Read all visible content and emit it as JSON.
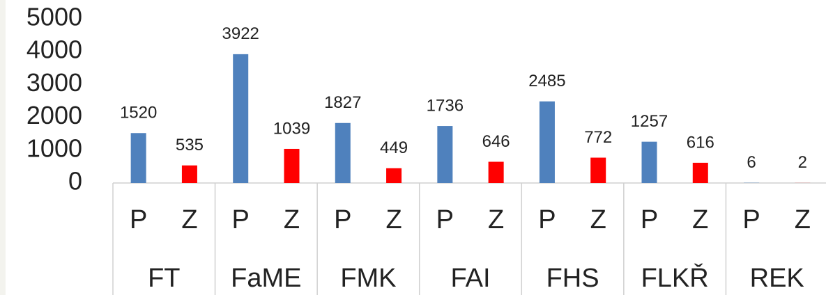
{
  "chart_data": {
    "type": "bar",
    "groups": [
      "FT",
      "FaME",
      "FMK",
      "FAI",
      "FHS",
      "FLKŘ",
      "REK"
    ],
    "categories": [
      "P",
      "Z",
      "P",
      "Z",
      "P",
      "Z",
      "P",
      "Z",
      "P",
      "Z",
      "P",
      "Z",
      "P",
      "Z"
    ],
    "values": [
      1520,
      535,
      3922,
      1039,
      1827,
      449,
      1736,
      646,
      2485,
      772,
      1257,
      616,
      6,
      2
    ],
    "colors": [
      "#4f81bd",
      "#ff0000",
      "#4f81bd",
      "#ff0000",
      "#4f81bd",
      "#ff0000",
      "#4f81bd",
      "#ff0000",
      "#4f81bd",
      "#ff0000",
      "#4f81bd",
      "#ff0000",
      "#4f81bd",
      "#ff0000"
    ],
    "ylim": [
      0,
      5000
    ],
    "yticks": [
      0,
      1000,
      2000,
      3000,
      4000,
      5000
    ],
    "grid": false
  }
}
